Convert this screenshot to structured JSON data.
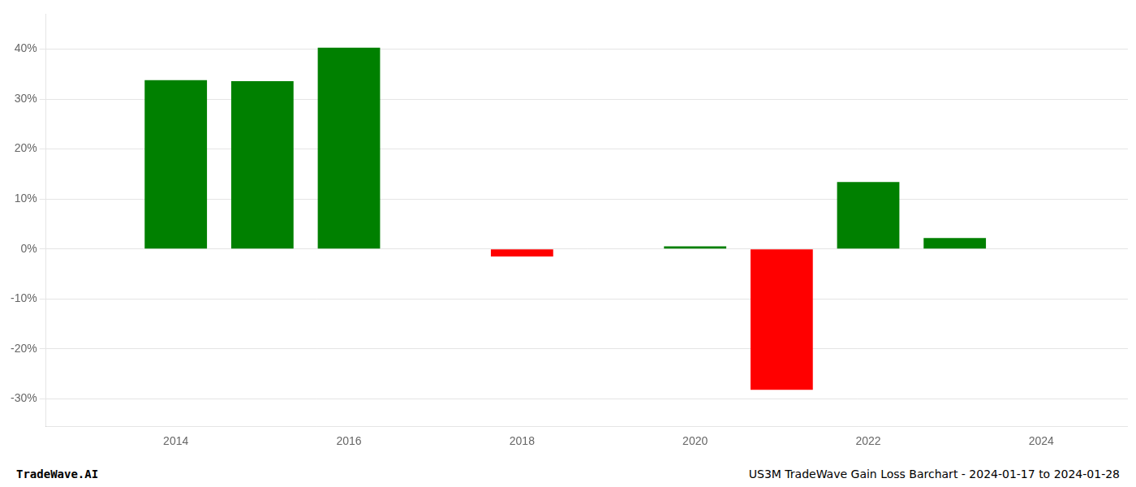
{
  "chart_data": {
    "type": "bar",
    "x": [
      2014,
      2015,
      2016,
      2018,
      2020,
      2021,
      2022,
      2023
    ],
    "values": [
      0.338,
      0.336,
      0.403,
      -0.015,
      0.005,
      -0.282,
      0.134,
      0.022
    ],
    "colors": [
      "#008000",
      "#008000",
      "#008000",
      "#ff0000",
      "#008000",
      "#ff0000",
      "#008000",
      "#008000"
    ],
    "xlim": [
      2012.5,
      2025
    ],
    "xticks": [
      2014,
      2016,
      2018,
      2020,
      2022,
      2024
    ],
    "ylim": [
      -0.355,
      0.47
    ],
    "yticks": [
      {
        "value": -0.3,
        "label": "-30%"
      },
      {
        "value": -0.2,
        "label": "-20%"
      },
      {
        "value": -0.1,
        "label": "-10%"
      },
      {
        "value": 0,
        "label": "0%"
      },
      {
        "value": 0.1,
        "label": "10%"
      },
      {
        "value": 0.2,
        "label": "20%"
      },
      {
        "value": 0.3,
        "label": "30%"
      },
      {
        "value": 0.4,
        "label": "40%"
      }
    ],
    "grid": "y",
    "annotations": [
      "TradeWave.AI",
      "US3M TradeWave Gain Loss Barchart - 2024-01-17 to 2024-01-28"
    ]
  }
}
